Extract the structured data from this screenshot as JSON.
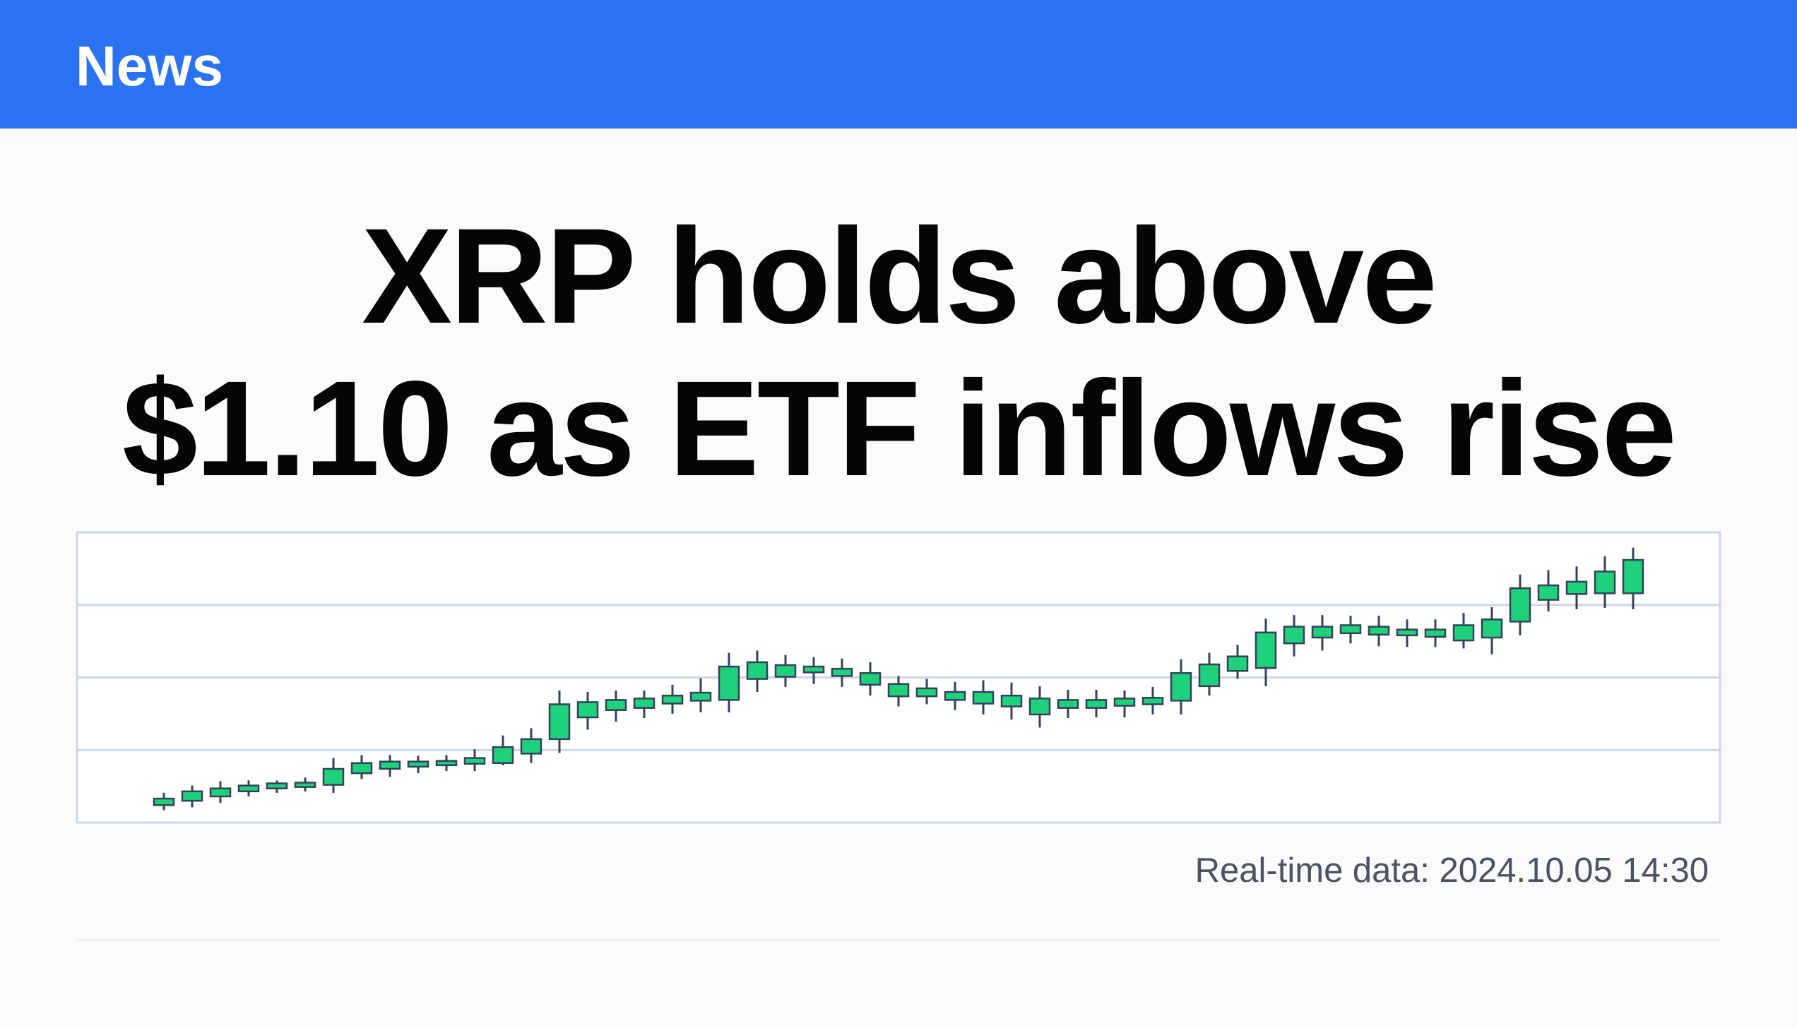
{
  "header": {
    "label": "News"
  },
  "headline": [
    "XRP holds above",
    "$1.10 as ETF inflows rise"
  ],
  "chart_data": {
    "type": "candlestick",
    "ylim": [
      0,
      4
    ],
    "yticks": [
      1,
      2,
      3
    ],
    "grid": true,
    "up_color": "#1fd17a",
    "wick_color": "#33415c",
    "open": [
      0.24,
      0.3,
      0.36,
      0.43,
      0.47,
      0.49,
      0.52,
      0.68,
      0.74,
      0.77,
      0.79,
      0.81,
      0.82,
      0.95,
      1.15,
      1.45,
      1.55,
      1.58,
      1.64,
      1.68,
      1.69,
      1.98,
      2.01,
      2.07,
      2.02,
      1.9,
      1.74,
      1.74,
      1.69,
      1.64,
      1.6,
      1.49,
      1.58,
      1.58,
      1.61,
      1.63,
      1.68,
      1.88,
      2.09,
      2.13,
      2.47,
      2.55,
      2.61,
      2.59,
      2.58,
      2.56,
      2.51,
      2.55,
      2.77,
      3.07,
      3.15,
      3.16,
      3.16
    ],
    "high": [
      0.41,
      0.51,
      0.57,
      0.58,
      0.58,
      0.62,
      0.89,
      0.93,
      0.93,
      0.92,
      0.93,
      1.01,
      1.2,
      1.3,
      1.82,
      1.8,
      1.82,
      1.82,
      1.9,
      1.99,
      2.34,
      2.37,
      2.31,
      2.28,
      2.26,
      2.21,
      2.02,
      1.98,
      1.94,
      1.96,
      1.93,
      1.88,
      1.83,
      1.83,
      1.82,
      1.87,
      2.25,
      2.34,
      2.45,
      2.81,
      2.86,
      2.86,
      2.85,
      2.85,
      2.8,
      2.8,
      2.89,
      2.97,
      3.42,
      3.48,
      3.53,
      3.67,
      3.79
    ],
    "low": [
      0.17,
      0.21,
      0.27,
      0.36,
      0.41,
      0.43,
      0.41,
      0.6,
      0.63,
      0.68,
      0.71,
      0.71,
      0.79,
      0.82,
      0.96,
      1.28,
      1.39,
      1.44,
      1.5,
      1.52,
      1.52,
      1.8,
      1.87,
      1.91,
      1.87,
      1.75,
      1.6,
      1.63,
      1.55,
      1.49,
      1.42,
      1.31,
      1.44,
      1.45,
      1.45,
      1.49,
      1.49,
      1.75,
      1.98,
      1.88,
      2.29,
      2.37,
      2.47,
      2.43,
      2.42,
      2.42,
      2.4,
      2.32,
      2.58,
      2.91,
      2.94,
      2.96,
      2.94
    ],
    "close": [
      0.33,
      0.43,
      0.47,
      0.51,
      0.54,
      0.55,
      0.74,
      0.82,
      0.84,
      0.84,
      0.85,
      0.89,
      1.04,
      1.15,
      1.63,
      1.66,
      1.69,
      1.71,
      1.75,
      1.79,
      2.15,
      2.21,
      2.17,
      2.15,
      2.12,
      2.06,
      1.91,
      1.85,
      1.8,
      1.8,
      1.75,
      1.71,
      1.69,
      1.69,
      1.71,
      1.72,
      2.06,
      2.18,
      2.29,
      2.62,
      2.7,
      2.7,
      2.72,
      2.7,
      2.66,
      2.66,
      2.72,
      2.8,
      3.23,
      3.27,
      3.32,
      3.46,
      3.62
    ]
  },
  "footer": "Real-time data: 2024.10.05 14:30"
}
